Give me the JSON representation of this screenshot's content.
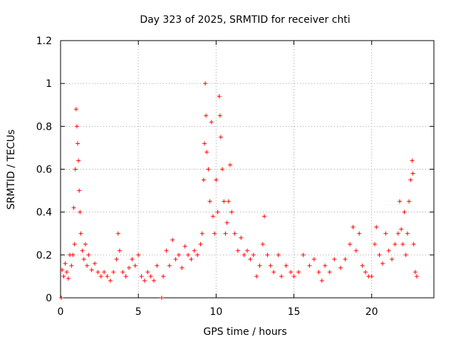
{
  "chart_data": {
    "type": "scatter",
    "title": "Day 323 of 2025, SRMTID for receiver chti",
    "xlabel": "GPS time / hours",
    "ylabel": "SRMTID / TECUs",
    "xlim": [
      0,
      24
    ],
    "ylim": [
      0,
      1.2
    ],
    "xticks": [
      0,
      5,
      10,
      15,
      20
    ],
    "xtick_labels": [
      "0",
      "5",
      "10",
      "15",
      "20"
    ],
    "yticks": [
      0,
      0.2,
      0.4,
      0.6,
      0.8,
      1.0,
      1.2
    ],
    "ytick_labels": [
      "0",
      "0.2",
      "0.4",
      "0.6",
      "0.8",
      "1",
      "1.2"
    ],
    "grid": true,
    "marker": "+",
    "series": [
      {
        "name": "SRMTID",
        "color": "#ff0000",
        "points": [
          [
            0.05,
            0.0
          ],
          [
            0.1,
            0.13
          ],
          [
            0.2,
            0.1
          ],
          [
            0.3,
            0.16
          ],
          [
            0.4,
            0.12
          ],
          [
            0.5,
            0.09
          ],
          [
            0.6,
            0.2
          ],
          [
            0.7,
            0.15
          ],
          [
            0.8,
            0.2
          ],
          [
            0.85,
            0.42
          ],
          [
            0.9,
            0.25
          ],
          [
            0.95,
            0.6
          ],
          [
            1.0,
            0.88
          ],
          [
            1.05,
            0.8
          ],
          [
            1.1,
            0.72
          ],
          [
            1.15,
            0.64
          ],
          [
            1.2,
            0.5
          ],
          [
            1.25,
            0.4
          ],
          [
            1.3,
            0.3
          ],
          [
            1.4,
            0.22
          ],
          [
            1.5,
            0.18
          ],
          [
            1.6,
            0.25
          ],
          [
            1.7,
            0.15
          ],
          [
            1.8,
            0.2
          ],
          [
            2.0,
            0.13
          ],
          [
            2.2,
            0.16
          ],
          [
            2.4,
            0.12
          ],
          [
            2.6,
            0.1
          ],
          [
            2.8,
            0.12
          ],
          [
            3.0,
            0.1
          ],
          [
            3.2,
            0.08
          ],
          [
            3.4,
            0.12
          ],
          [
            3.6,
            0.18
          ],
          [
            3.7,
            0.3
          ],
          [
            3.8,
            0.22
          ],
          [
            4.0,
            0.12
          ],
          [
            4.2,
            0.1
          ],
          [
            4.4,
            0.14
          ],
          [
            4.6,
            0.18
          ],
          [
            4.8,
            0.15
          ],
          [
            5.0,
            0.2
          ],
          [
            5.2,
            0.1
          ],
          [
            5.4,
            0.08
          ],
          [
            5.6,
            0.12
          ],
          [
            5.8,
            0.1
          ],
          [
            6.0,
            0.08
          ],
          [
            6.2,
            0.15
          ],
          [
            6.5,
            0.0
          ],
          [
            6.6,
            0.1
          ],
          [
            6.8,
            0.22
          ],
          [
            7.0,
            0.15
          ],
          [
            7.2,
            0.27
          ],
          [
            7.4,
            0.18
          ],
          [
            7.6,
            0.2
          ],
          [
            7.8,
            0.14
          ],
          [
            8.0,
            0.24
          ],
          [
            8.2,
            0.2
          ],
          [
            8.4,
            0.18
          ],
          [
            8.6,
            0.22
          ],
          [
            8.8,
            0.2
          ],
          [
            9.0,
            0.25
          ],
          [
            9.1,
            0.3
          ],
          [
            9.2,
            0.55
          ],
          [
            9.25,
            0.72
          ],
          [
            9.3,
            1.0
          ],
          [
            9.35,
            0.85
          ],
          [
            9.4,
            0.68
          ],
          [
            9.5,
            0.6
          ],
          [
            9.6,
            0.45
          ],
          [
            9.7,
            0.82
          ],
          [
            9.8,
            0.38
          ],
          [
            9.9,
            0.3
          ],
          [
            10.0,
            0.55
          ],
          [
            10.1,
            0.4
          ],
          [
            10.2,
            0.94
          ],
          [
            10.25,
            0.85
          ],
          [
            10.3,
            0.75
          ],
          [
            10.4,
            0.6
          ],
          [
            10.5,
            0.45
          ],
          [
            10.6,
            0.3
          ],
          [
            10.7,
            0.35
          ],
          [
            10.8,
            0.45
          ],
          [
            10.9,
            0.62
          ],
          [
            11.0,
            0.4
          ],
          [
            11.2,
            0.3
          ],
          [
            11.4,
            0.22
          ],
          [
            11.6,
            0.28
          ],
          [
            11.8,
            0.2
          ],
          [
            12.0,
            0.22
          ],
          [
            12.2,
            0.18
          ],
          [
            12.4,
            0.2
          ],
          [
            12.6,
            0.1
          ],
          [
            12.8,
            0.15
          ],
          [
            13.0,
            0.25
          ],
          [
            13.1,
            0.38
          ],
          [
            13.3,
            0.2
          ],
          [
            13.5,
            0.15
          ],
          [
            13.7,
            0.12
          ],
          [
            14.0,
            0.2
          ],
          [
            14.2,
            0.1
          ],
          [
            14.5,
            0.15
          ],
          [
            14.8,
            0.12
          ],
          [
            15.0,
            0.1
          ],
          [
            15.3,
            0.12
          ],
          [
            15.6,
            0.2
          ],
          [
            16.0,
            0.15
          ],
          [
            16.3,
            0.18
          ],
          [
            16.6,
            0.12
          ],
          [
            16.8,
            0.08
          ],
          [
            17.0,
            0.15
          ],
          [
            17.3,
            0.12
          ],
          [
            17.6,
            0.18
          ],
          [
            18.0,
            0.14
          ],
          [
            18.3,
            0.18
          ],
          [
            18.6,
            0.25
          ],
          [
            18.8,
            0.33
          ],
          [
            19.0,
            0.22
          ],
          [
            19.2,
            0.3
          ],
          [
            19.4,
            0.15
          ],
          [
            19.6,
            0.12
          ],
          [
            19.8,
            0.1
          ],
          [
            20.0,
            0.1
          ],
          [
            20.2,
            0.25
          ],
          [
            20.3,
            0.33
          ],
          [
            20.5,
            0.2
          ],
          [
            20.7,
            0.16
          ],
          [
            20.9,
            0.3
          ],
          [
            21.1,
            0.22
          ],
          [
            21.3,
            0.18
          ],
          [
            21.5,
            0.25
          ],
          [
            21.7,
            0.3
          ],
          [
            21.8,
            0.45
          ],
          [
            21.9,
            0.32
          ],
          [
            22.0,
            0.25
          ],
          [
            22.1,
            0.4
          ],
          [
            22.2,
            0.2
          ],
          [
            22.3,
            0.3
          ],
          [
            22.4,
            0.45
          ],
          [
            22.5,
            0.55
          ],
          [
            22.6,
            0.64
          ],
          [
            22.65,
            0.58
          ],
          [
            22.7,
            0.25
          ],
          [
            22.8,
            0.12
          ],
          [
            22.9,
            0.1
          ]
        ]
      }
    ]
  }
}
